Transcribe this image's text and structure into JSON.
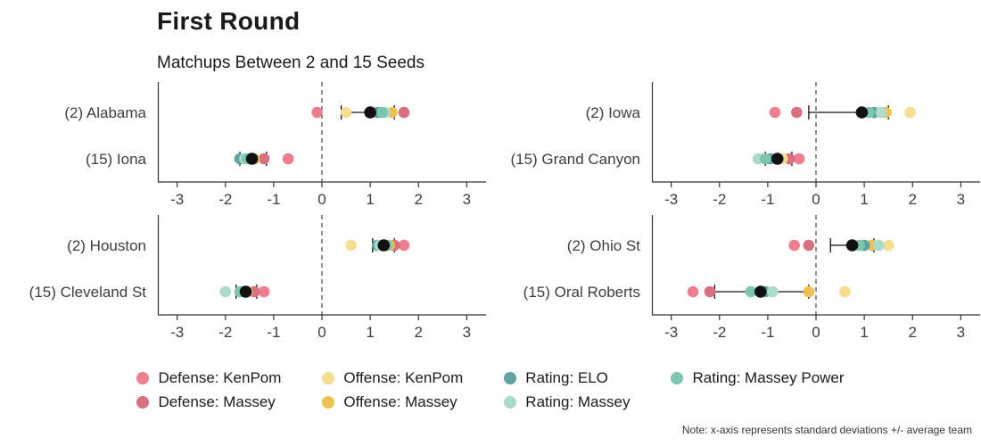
{
  "title": "First Round",
  "subtitle": "Matchups Between 2 and 15 Seeds",
  "note": "Note: x-axis represents standard deviations +/- average team",
  "colors": {
    "mean": "#111111",
    "axis": "#333333",
    "zero_line": "#222222",
    "background": "#ffffff"
  },
  "chart_data": {
    "type": "scatter",
    "xlim": [
      -3.4,
      3.4
    ],
    "xticks": [
      -3,
      -2,
      -1,
      0,
      1,
      2,
      3
    ],
    "grid": false,
    "legend_position": "bottom",
    "metrics": [
      {
        "key": "defense_kenpom",
        "label": "Defense: KenPom",
        "color": "#ED7E8F"
      },
      {
        "key": "defense_massey",
        "label": "Defense: Massey",
        "color": "#D9707F"
      },
      {
        "key": "offense_kenpom",
        "label": "Offense: KenPom",
        "color": "#F7DD92"
      },
      {
        "key": "offense_massey",
        "label": "Offense: Massey",
        "color": "#EDC253"
      },
      {
        "key": "rating_elo",
        "label": "Rating: ELO",
        "color": "#5FA3A0"
      },
      {
        "key": "rating_massey",
        "label": "Rating: Massey",
        "color": "#AADBCB"
      },
      {
        "key": "rating_massey_power",
        "label": "Rating: Massey Power",
        "color": "#7CC5B1"
      }
    ],
    "panels": [
      {
        "rows": [
          {
            "team": "(2) Alabama",
            "values": {
              "defense_kenpom": -0.1,
              "defense_massey": 1.7,
              "offense_kenpom": 0.5,
              "offense_massey": 1.45,
              "rating_elo": 1.15,
              "rating_massey": 1.3,
              "rating_massey_power": 1.25
            },
            "mean": 1.0,
            "ci": [
              0.4,
              1.5
            ]
          },
          {
            "team": "(15) Iona",
            "values": {
              "defense_kenpom": -0.7,
              "defense_massey": -1.2,
              "offense_kenpom": -1.5,
              "offense_massey": -1.4,
              "rating_elo": -1.7,
              "rating_massey": -1.6,
              "rating_massey_power": -1.55
            },
            "mean": -1.45,
            "ci": [
              -1.7,
              -1.15
            ]
          }
        ]
      },
      {
        "rows": [
          {
            "team": "(2) Iowa",
            "values": {
              "defense_kenpom": -0.85,
              "defense_massey": -0.4,
              "offense_kenpom": 1.95,
              "offense_massey": 1.45,
              "rating_elo": 1.2,
              "rating_massey": 1.35,
              "rating_massey_power": 1.1
            },
            "mean": 0.95,
            "ci": [
              -0.15,
              1.5
            ]
          },
          {
            "team": "(15) Grand Canyon",
            "values": {
              "defense_kenpom": -0.35,
              "defense_massey": -0.55,
              "offense_kenpom": -0.7,
              "offense_massey": -0.8,
              "rating_elo": -0.95,
              "rating_massey": -1.2,
              "rating_massey_power": -1.05
            },
            "mean": -0.8,
            "ci": [
              -1.05,
              -0.5
            ]
          }
        ]
      },
      {
        "rows": [
          {
            "team": "(2) Houston",
            "values": {
              "defense_kenpom": 1.7,
              "defense_massey": 1.5,
              "offense_kenpom": 0.6,
              "offense_massey": 1.4,
              "rating_elo": 1.15,
              "rating_massey": 1.2,
              "rating_massey_power": 1.35
            },
            "mean": 1.28,
            "ci": [
              1.05,
              1.5
            ]
          },
          {
            "team": "(15) Cleveland St",
            "values": {
              "defense_kenpom": -1.2,
              "defense_massey": -1.4,
              "offense_kenpom": -1.6,
              "offense_massey": -1.55,
              "rating_elo": -1.65,
              "rating_massey": -2.0,
              "rating_massey_power": -1.7
            },
            "mean": -1.58,
            "ci": [
              -1.78,
              -1.35
            ]
          }
        ]
      },
      {
        "rows": [
          {
            "team": "(2) Ohio St",
            "values": {
              "defense_kenpom": -0.45,
              "defense_massey": -0.15,
              "offense_kenpom": 1.5,
              "offense_massey": 1.15,
              "rating_elo": 1.0,
              "rating_massey": 1.3,
              "rating_massey_power": 0.9
            },
            "mean": 0.75,
            "ci": [
              0.3,
              1.2
            ]
          },
          {
            "team": "(15) Oral Roberts",
            "values": {
              "defense_kenpom": -2.55,
              "defense_massey": -2.2,
              "offense_kenpom": 0.6,
              "offense_massey": -0.15,
              "rating_elo": -1.05,
              "rating_massey": -0.9,
              "rating_massey_power": -1.35
            },
            "mean": -1.15,
            "ci": [
              -2.1,
              -0.15
            ]
          }
        ]
      }
    ]
  }
}
